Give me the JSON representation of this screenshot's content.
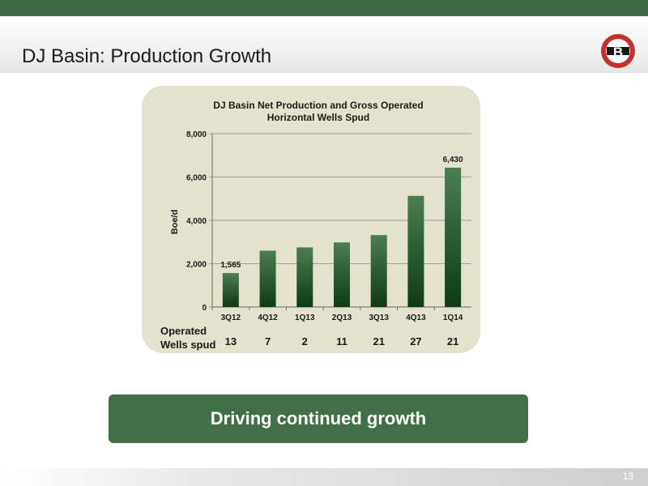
{
  "slide": {
    "title": "DJ Basin: Production Growth",
    "callout": "Driving continued growth",
    "page_number": "13",
    "logo_letter": "B"
  },
  "colors": {
    "brand_green": "#3f6844",
    "callout_green": "#416f48",
    "panel": "#e2e2cf",
    "bar_light": "#4c7d52",
    "bar_dark": "#0e3a15",
    "logo_red": "#c4302b"
  },
  "chart_data": {
    "type": "bar",
    "title": "DJ Basin Net Production and Gross Operated Horizontal Wells Spud",
    "title_lines": [
      "DJ Basin Net Production and Gross Operated",
      "Horizontal Wells Spud"
    ],
    "ylabel": "Boe/d",
    "xlabel": "",
    "ylim": [
      0,
      8000
    ],
    "yticks": [
      0,
      2000,
      4000,
      6000,
      8000
    ],
    "ytick_labels": [
      "0",
      "2,000",
      "4,000",
      "6,000",
      "8,000"
    ],
    "grid": true,
    "categories": [
      "3Q12",
      "4Q12",
      "1Q13",
      "2Q13",
      "3Q13",
      "4Q13",
      "1Q14"
    ],
    "values": [
      1565,
      2600,
      2750,
      2980,
      3320,
      5130,
      6430
    ],
    "data_labels": [
      "1,565",
      "",
      "",
      "",
      "",
      "",
      "6,430"
    ],
    "wells_spud": {
      "label_lines": [
        "Operated",
        "Wells spud"
      ],
      "values": [
        13,
        7,
        2,
        11,
        21,
        27,
        21
      ]
    }
  }
}
